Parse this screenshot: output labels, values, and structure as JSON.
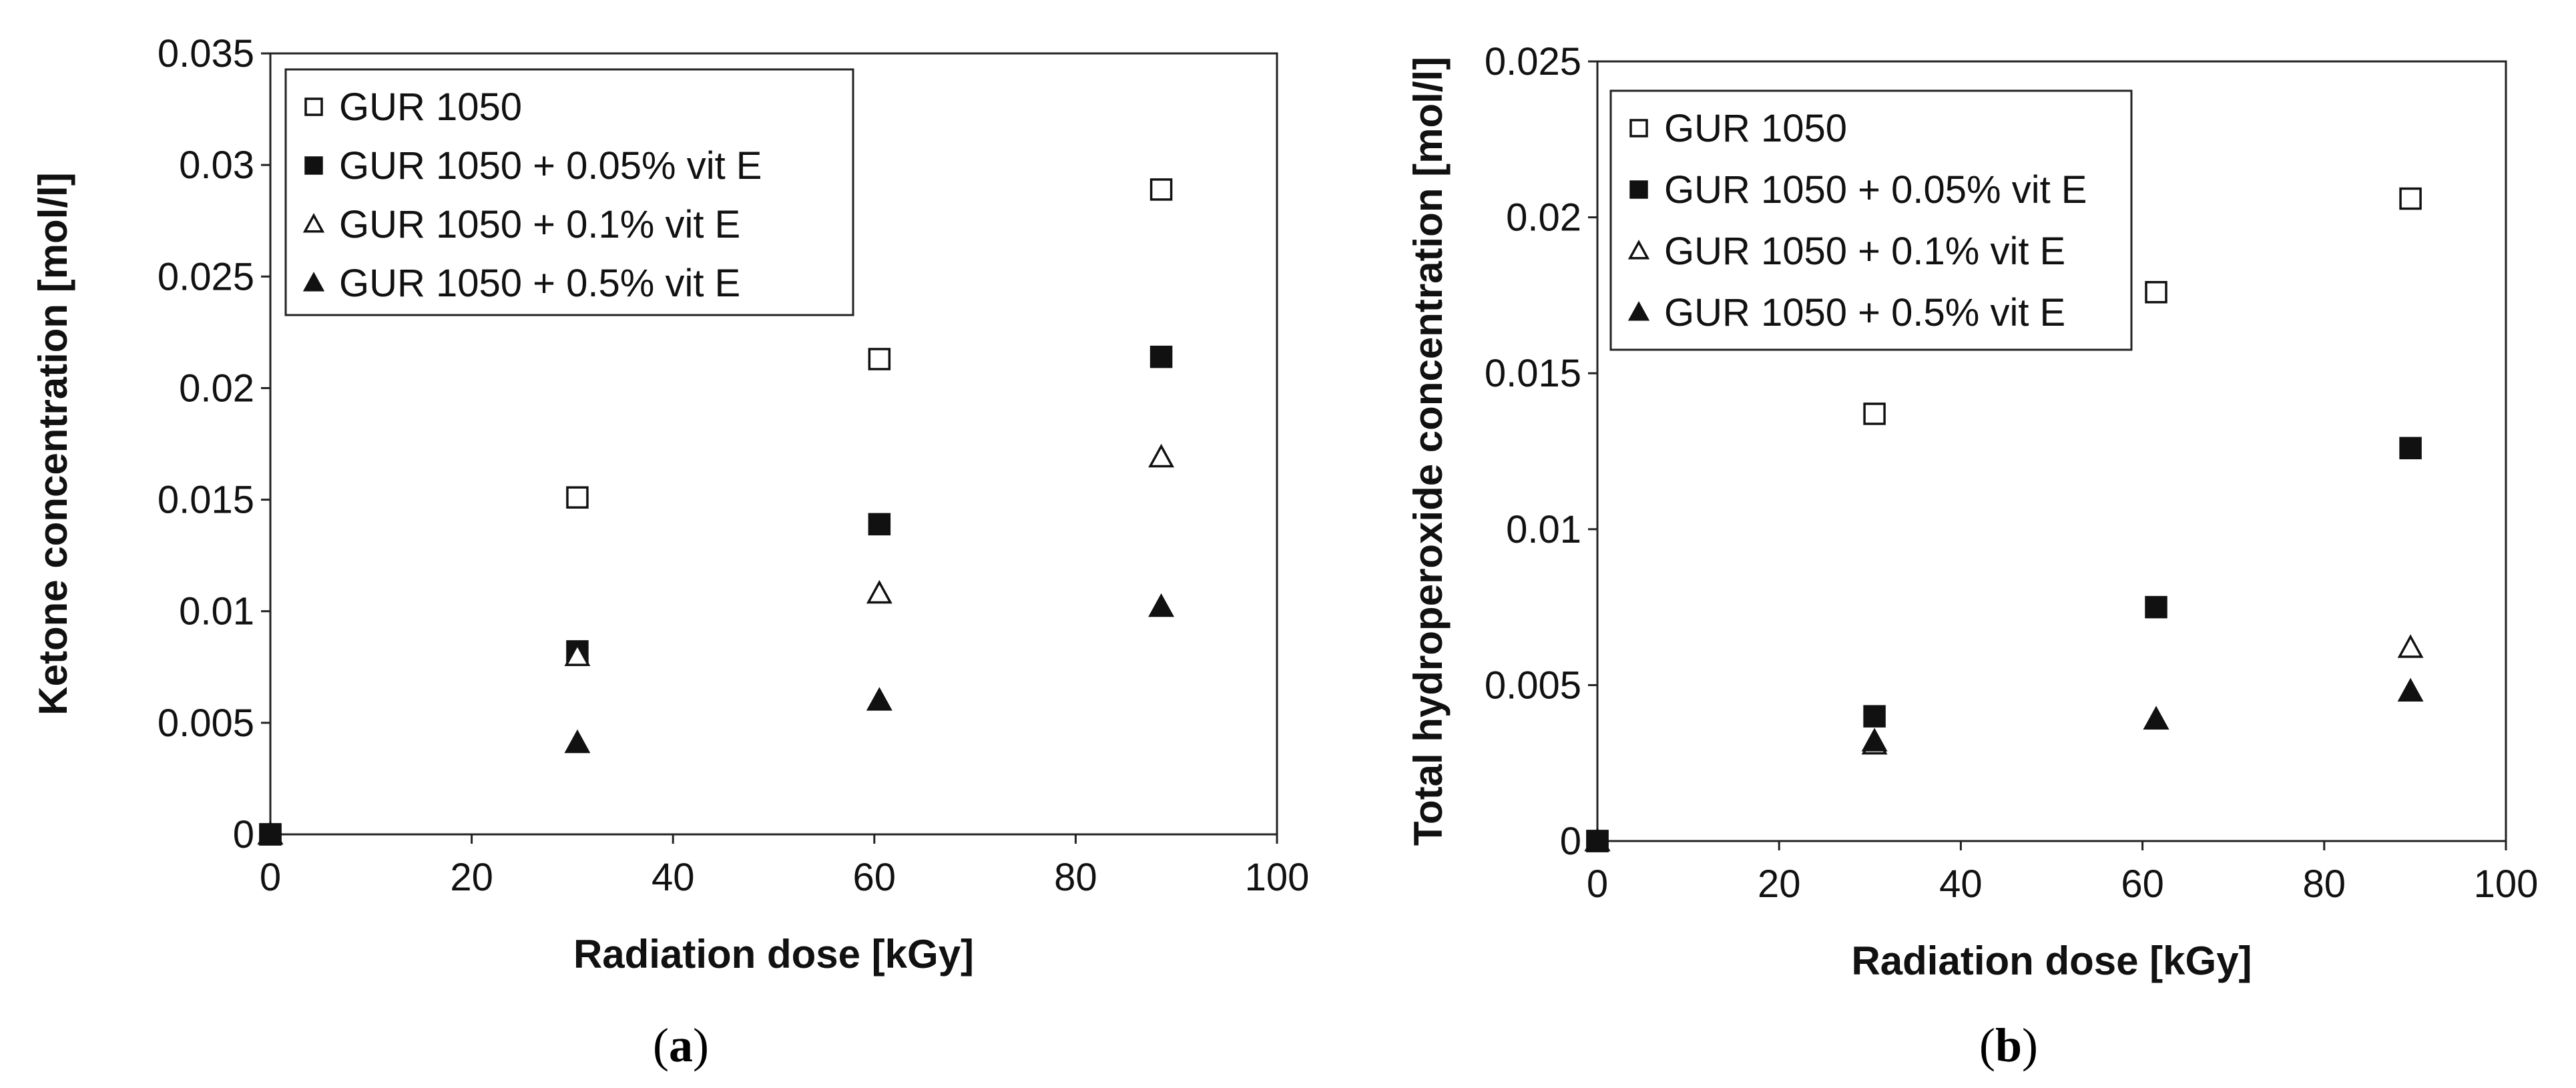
{
  "chart_data": [
    {
      "type": "scatter",
      "caption": "a",
      "xlabel": "Radiation dose [kGy]",
      "ylabel": "Ketone concentration [mol/l]",
      "xlim": [
        0,
        100
      ],
      "ylim": [
        0,
        0.035
      ],
      "xticks": [
        "0",
        "20",
        "40",
        "60",
        "80",
        "100"
      ],
      "yticks": [
        "0",
        "0.005",
        "0.01",
        "0.015",
        "0.02",
        "0.025",
        "0.03",
        "0.035"
      ],
      "grid": false,
      "legend": "top-left",
      "series": [
        {
          "name": "GUR 1050",
          "marker": "open-square",
          "x": [
            0,
            30.5,
            60.5,
            88.5
          ],
          "y": [
            0,
            0.0151,
            0.0213,
            0.0289
          ]
        },
        {
          "name": "GUR 1050 + 0.05% vit E",
          "marker": "filled-square",
          "x": [
            0,
            30.5,
            60.5,
            88.5
          ],
          "y": [
            0,
            0.0082,
            0.0139,
            0.0214
          ]
        },
        {
          "name": "GUR 1050 + 0.1% vit E",
          "marker": "open-triangle",
          "x": [
            0,
            30.5,
            60.5,
            88.5
          ],
          "y": [
            0,
            0.008,
            0.0108,
            0.0169
          ]
        },
        {
          "name": "GUR 1050 + 0.5% vit E",
          "marker": "filled-triangle",
          "x": [
            0,
            30.5,
            60.5,
            88.5
          ],
          "y": [
            0,
            0.0041,
            0.006,
            0.0102
          ]
        }
      ]
    },
    {
      "type": "scatter",
      "caption": "b",
      "xlabel": "Radiation dose [kGy]",
      "ylabel": "Total hydroperoxide concentration [mol/l]",
      "xlim": [
        0,
        100
      ],
      "ylim": [
        0,
        0.025
      ],
      "xticks": [
        "0",
        "20",
        "40",
        "60",
        "80",
        "100"
      ],
      "yticks": [
        "0",
        "0.005",
        "0.01",
        "0.015",
        "0.02",
        "0.025"
      ],
      "grid": false,
      "legend": "top-left",
      "series": [
        {
          "name": "GUR 1050",
          "marker": "open-square",
          "x": [
            0,
            30.5,
            61.5,
            89.5
          ],
          "y": [
            0,
            0.0137,
            0.0176,
            0.0206
          ]
        },
        {
          "name": "GUR 1050 + 0.05% vit E",
          "marker": "filled-square",
          "x": [
            0,
            30.5,
            61.5,
            89.5
          ],
          "y": [
            0,
            0.004,
            0.0075,
            0.0126
          ]
        },
        {
          "name": "GUR 1050 + 0.1% vit E",
          "marker": "open-triangle",
          "x": [
            0,
            30.5,
            61.5,
            89.5
          ],
          "y": [
            0,
            0.0031,
            0.0039,
            0.0062
          ]
        },
        {
          "name": "GUR 1050 + 0.5% vit E",
          "marker": "filled-triangle",
          "x": [
            0,
            30.5,
            61.5,
            89.5
          ],
          "y": [
            0,
            0.0032,
            0.0039,
            0.0048
          ]
        }
      ]
    }
  ]
}
